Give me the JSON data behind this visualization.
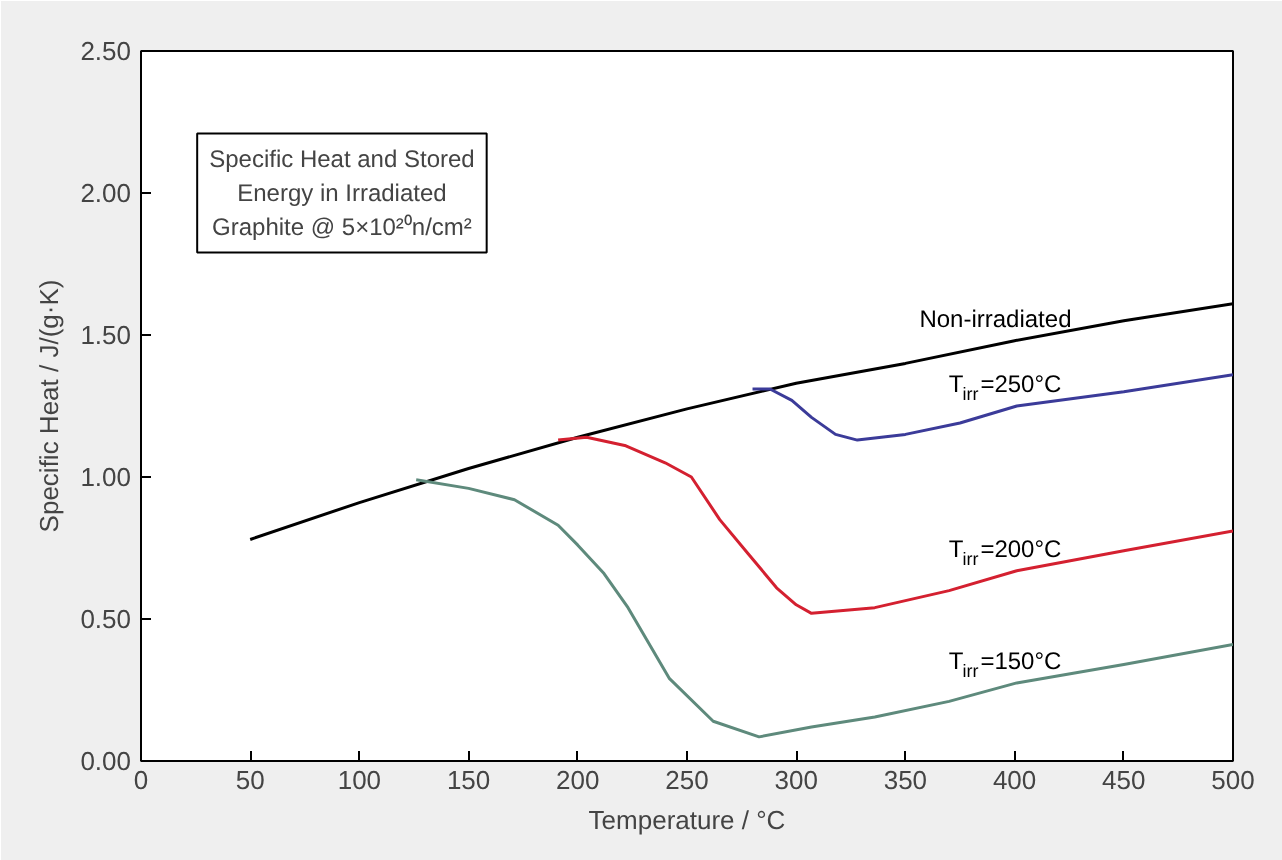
{
  "chart_data": {
    "type": "line",
    "xlabel": "Temperature / °C",
    "ylabel": "Specific Heat / J/(g·K)",
    "xlim": [
      0,
      500
    ],
    "ylim": [
      0,
      2.5
    ],
    "xticks": [
      0,
      50,
      100,
      150,
      200,
      250,
      300,
      350,
      400,
      450,
      500
    ],
    "yticks": [
      {
        "value": 0,
        "label": "0.00"
      },
      {
        "value": 0.5,
        "label": "0.50"
      },
      {
        "value": 1,
        "label": "1.00"
      },
      {
        "value": 1.5,
        "label": "1.50"
      },
      {
        "value": 2,
        "label": "2.00"
      },
      {
        "value": 2.5,
        "label": "2.50"
      }
    ],
    "grid": false,
    "marker": "none",
    "line_style": "solid",
    "annotations": [
      "Specific Heat and Stored\nEnergy in Irradiated\nGraphite @ 5×10²⁰n/cm²"
    ],
    "series": [
      {
        "name": "Non-irradiated",
        "color": "#000000",
        "x": [
          50,
          100,
          150,
          200,
          250,
          300,
          350,
          400,
          450,
          500
        ],
        "values": [
          0.78,
          0.91,
          1.03,
          1.14,
          1.24,
          1.33,
          1.4,
          1.48,
          1.55,
          1.61
        ]
      },
      {
        "name": "T$_{irr}$=250°C",
        "color": "#3b3b99",
        "x": [
          280,
          288,
          298,
          307,
          318,
          328,
          350,
          375,
          401,
          450,
          500
        ],
        "values": [
          1.31,
          1.31,
          1.27,
          1.21,
          1.15,
          1.13,
          1.15,
          1.19,
          1.25,
          1.3,
          1.36
        ]
      },
      {
        "name": "T$_{irr}$=200°C",
        "color": "#d42030",
        "x": [
          191,
          204,
          222,
          240,
          252,
          265,
          278,
          291,
          300,
          307,
          336,
          370,
          401,
          450,
          500
        ],
        "values": [
          1.13,
          1.14,
          1.11,
          1.05,
          1.0,
          0.85,
          0.73,
          0.61,
          0.55,
          0.52,
          0.54,
          0.6,
          0.67,
          0.74,
          0.81
        ]
      },
      {
        "name": "T$_{irr}$=150°C",
        "color": "#5e8a7c",
        "x": [
          126,
          150,
          171,
          191,
          200,
          212,
          223,
          242,
          262,
          283,
          307,
          336,
          370,
          401,
          450,
          500
        ],
        "values": [
          0.99,
          0.96,
          0.92,
          0.83,
          0.76,
          0.66,
          0.54,
          0.29,
          0.14,
          0.085,
          0.12,
          0.155,
          0.21,
          0.275,
          0.34,
          0.41
        ]
      }
    ]
  }
}
